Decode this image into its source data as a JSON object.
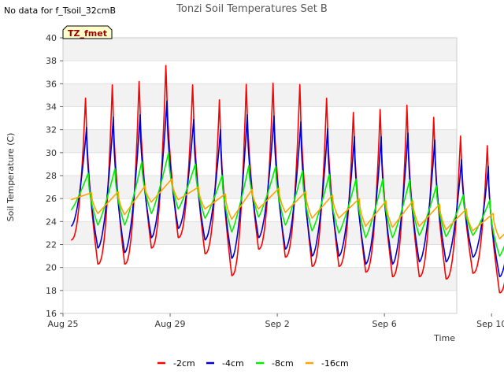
{
  "corner_note": "No data for f_Tsoil_32cmB",
  "badge": "TZ_fmet",
  "chart_data": {
    "type": "line",
    "title": "Tonzi Soil Temperatures Set B",
    "xlabel": "Time",
    "ylabel": "Soil Temperature (C)",
    "x_units": "days since Aug 25",
    "xlim": [
      0,
      14.7
    ],
    "ylim": [
      16,
      40
    ],
    "x_ticks": [
      {
        "value": 0,
        "label": "Aug 25"
      },
      {
        "value": 4,
        "label": "Aug 29"
      },
      {
        "value": 8,
        "label": "Sep 2"
      },
      {
        "value": 12,
        "label": "Sep 6"
      },
      {
        "value": 16,
        "label": "Sep 10"
      }
    ],
    "y_ticks": [
      16,
      18,
      20,
      22,
      24,
      26,
      28,
      30,
      32,
      34,
      36,
      38,
      40
    ],
    "grid": "alternating horizontal bands",
    "legend_position": "bottom",
    "daily_start": 0.3,
    "days": 17,
    "series": [
      {
        "name": "-2cm",
        "color": "#ff0000",
        "min": [
          22.4,
          20.3,
          20.3,
          21.7,
          22.6,
          21.2,
          19.3,
          21.6,
          20.9,
          20.1,
          20.1,
          19.6,
          19.2,
          19.2,
          19.0,
          19.5,
          17.8
        ],
        "max": [
          35.3,
          36.6,
          36.9,
          38.3,
          36.5,
          35.2,
          36.7,
          36.7,
          36.6,
          35.4,
          34.1,
          34.4,
          34.8,
          33.7,
          32.0,
          31.1,
          29.9
        ]
      },
      {
        "name": "-4cm",
        "color": "#0000cc",
        "min": [
          23.6,
          21.7,
          21.3,
          22.6,
          23.4,
          22.4,
          20.8,
          22.6,
          21.6,
          21.0,
          21.0,
          20.3,
          20.3,
          20.5,
          20.5,
          20.9,
          19.2
        ],
        "max": [
          32.2,
          33.1,
          33.3,
          34.5,
          32.9,
          32.0,
          33.3,
          33.2,
          32.7,
          32.1,
          31.4,
          31.4,
          31.7,
          31.1,
          29.4,
          28.8,
          27.8
        ]
      },
      {
        "name": "-8cm",
        "color": "#00ee00",
        "min": [
          25.0,
          23.7,
          23.7,
          24.7,
          25.1,
          24.3,
          23.1,
          24.4,
          23.7,
          23.2,
          23.0,
          22.6,
          22.6,
          22.8,
          22.7,
          22.8,
          21.0
        ],
        "max": [
          28.2,
          28.6,
          29.2,
          30.0,
          29.0,
          28.0,
          28.9,
          28.8,
          28.4,
          28.1,
          27.7,
          27.7,
          27.6,
          27.1,
          26.3,
          25.9,
          25.0
        ]
      },
      {
        "name": "-16cm",
        "color": "#ffa500",
        "min": [
          25.9,
          24.7,
          24.6,
          25.7,
          25.9,
          25.1,
          24.2,
          25.1,
          24.8,
          24.3,
          24.3,
          23.6,
          23.5,
          23.6,
          23.3,
          23.2,
          22.5
        ],
        "max": [
          26.5,
          26.6,
          27.1,
          27.7,
          27.0,
          26.4,
          26.8,
          26.9,
          26.6,
          26.3,
          26.0,
          25.8,
          25.8,
          25.5,
          25.1,
          24.7,
          24.3
        ]
      }
    ]
  }
}
